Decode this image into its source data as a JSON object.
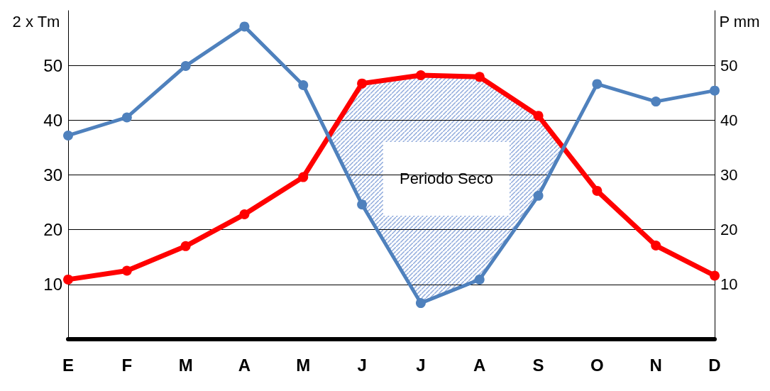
{
  "chart_data": {
    "type": "line",
    "ylabel": "2 x Tm",
    "y2label": "P mm",
    "categories": [
      "E",
      "F",
      "M",
      "A",
      "M",
      "J",
      "J",
      "A",
      "S",
      "O",
      "N",
      "D"
    ],
    "series": [
      {
        "color": "#ff0000",
        "axis": "y",
        "values": [
          10.9,
          12.5,
          17,
          22.8,
          29.6,
          46.7,
          48.2,
          47.9,
          40.8,
          27.1,
          17.1,
          11.6
        ]
      },
      {
        "color": "#4f81bd",
        "axis": "y2",
        "values": [
          37.2,
          40.5,
          49.9,
          57.1,
          46.4,
          24.6,
          6.6,
          10.9,
          26.2,
          46.6,
          43.4,
          45.4
        ]
      }
    ],
    "ylim": [
      0,
      60
    ],
    "yticks": [
      10,
      20,
      30,
      40,
      50
    ],
    "y2lim": [
      0,
      60
    ],
    "y2ticks": [
      10,
      20,
      30,
      40,
      50
    ],
    "grid": "y",
    "marker": "circle",
    "line_style": "solid",
    "annotations": [
      "Periodo Seco"
    ]
  }
}
